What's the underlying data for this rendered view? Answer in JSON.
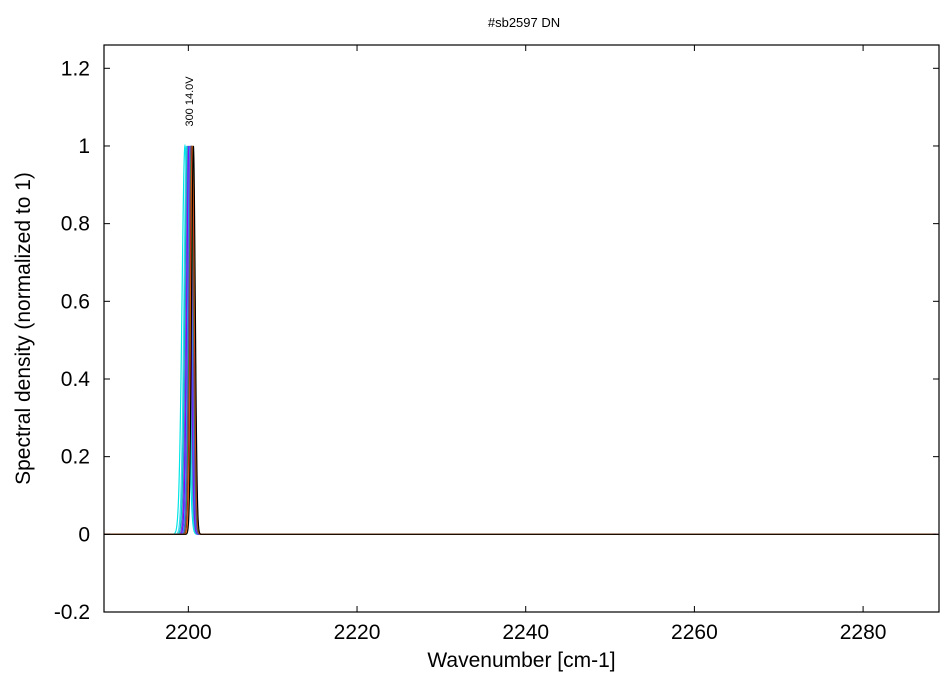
{
  "chart_data": {
    "type": "line",
    "title": "#sb2597 DN",
    "xlabel": "Wavenumber [cm-1]",
    "ylabel": "Spectral density (normalized to 1)",
    "xlim": [
      2190,
      2289
    ],
    "ylim": [
      -0.2,
      1.26
    ],
    "x_ticks": [
      2200,
      2220,
      2240,
      2260,
      2280
    ],
    "y_ticks": [
      -0.2,
      0,
      0.2,
      0.4,
      0.6,
      0.8,
      1,
      1.2
    ],
    "y_tick_labels": [
      "-0.2",
      "0",
      "0.2",
      "0.4",
      "0.6",
      "0.8",
      "1",
      "1.2"
    ],
    "grid": false,
    "peak_labels": [
      "300 14.0V"
    ],
    "series": [
      {
        "color": "#00e5e5",
        "center": 2199.6,
        "width": 0.35
      },
      {
        "color": "#3fd3f0",
        "center": 2199.8,
        "width": 0.32
      },
      {
        "color": "#00c8c8",
        "center": 2199.9,
        "width": 0.3
      },
      {
        "color": "#6a5acd",
        "center": 2200.0,
        "width": 0.28
      },
      {
        "color": "#8000ff",
        "center": 2200.1,
        "width": 0.27
      },
      {
        "color": "#1e90ff",
        "center": 2200.2,
        "width": 0.26
      },
      {
        "color": "#c000c0",
        "center": 2200.3,
        "width": 0.25
      },
      {
        "color": "#2e8b57",
        "center": 2200.35,
        "width": 0.25
      },
      {
        "color": "#b22222",
        "center": 2200.45,
        "width": 0.24
      },
      {
        "color": "#ff8c00",
        "center": 2200.55,
        "width": 0.23
      },
      {
        "color": "#000000",
        "center": 2200.6,
        "width": 0.22
      }
    ]
  }
}
